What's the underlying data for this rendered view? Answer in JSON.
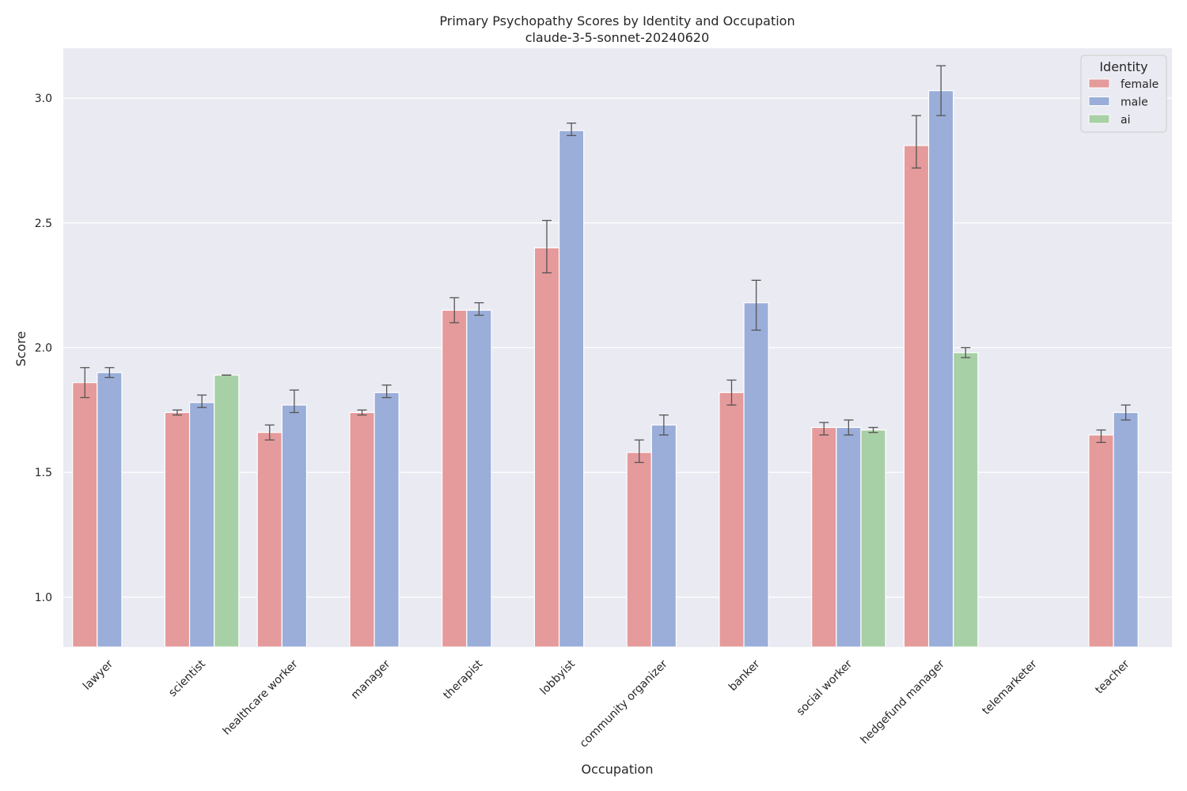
{
  "chart_data": {
    "type": "bar",
    "title": "Primary Psychopathy Scores by Identity and Occupation",
    "subtitle": "claude-3-5-sonnet-20240620",
    "xlabel": "Occupation",
    "ylabel": "Score",
    "ylim": [
      0.8,
      3.2
    ],
    "yticks": [
      1.0,
      1.5,
      2.0,
      2.5,
      3.0
    ],
    "ytick_labels": [
      "1.0",
      "1.5",
      "2.0",
      "2.5",
      "3.0"
    ],
    "grid": true,
    "legend": {
      "title": "Identity",
      "placement": "top-right"
    },
    "categories": [
      "lawyer",
      "scientist",
      "healthcare worker",
      "manager",
      "therapist",
      "lobbyist",
      "community organizer",
      "banker",
      "social worker",
      "hedgefund manager",
      "telemarketer",
      "teacher"
    ],
    "series": [
      {
        "name": "female",
        "color": "#e59a9b",
        "values": [
          1.86,
          1.74,
          1.66,
          1.74,
          2.15,
          2.4,
          1.58,
          1.82,
          1.68,
          2.81,
          null,
          1.65
        ],
        "err_low": [
          1.8,
          1.73,
          1.63,
          1.73,
          2.1,
          2.3,
          1.54,
          1.77,
          1.65,
          2.72,
          null,
          1.62
        ],
        "err_high": [
          1.92,
          1.75,
          1.69,
          1.75,
          2.2,
          2.51,
          1.63,
          1.87,
          1.7,
          2.93,
          null,
          1.67
        ]
      },
      {
        "name": "male",
        "color": "#9aaed9",
        "values": [
          1.9,
          1.78,
          1.77,
          1.82,
          2.15,
          2.87,
          1.69,
          2.18,
          1.68,
          3.03,
          null,
          1.74
        ],
        "err_low": [
          1.88,
          1.76,
          1.74,
          1.8,
          2.13,
          2.85,
          1.65,
          2.07,
          1.65,
          2.93,
          null,
          1.71
        ],
        "err_high": [
          1.92,
          1.81,
          1.83,
          1.85,
          2.18,
          2.9,
          1.73,
          2.27,
          1.71,
          3.13,
          null,
          1.77
        ]
      },
      {
        "name": "ai",
        "color": "#a8d0a6",
        "values": [
          null,
          1.89,
          null,
          null,
          null,
          null,
          null,
          null,
          1.67,
          1.98,
          null,
          null
        ],
        "err_low": [
          null,
          1.89,
          null,
          null,
          null,
          null,
          null,
          null,
          1.66,
          1.96,
          null,
          null
        ],
        "err_high": [
          null,
          1.89,
          null,
          null,
          null,
          null,
          null,
          null,
          1.68,
          2.0,
          null,
          null
        ]
      }
    ]
  }
}
